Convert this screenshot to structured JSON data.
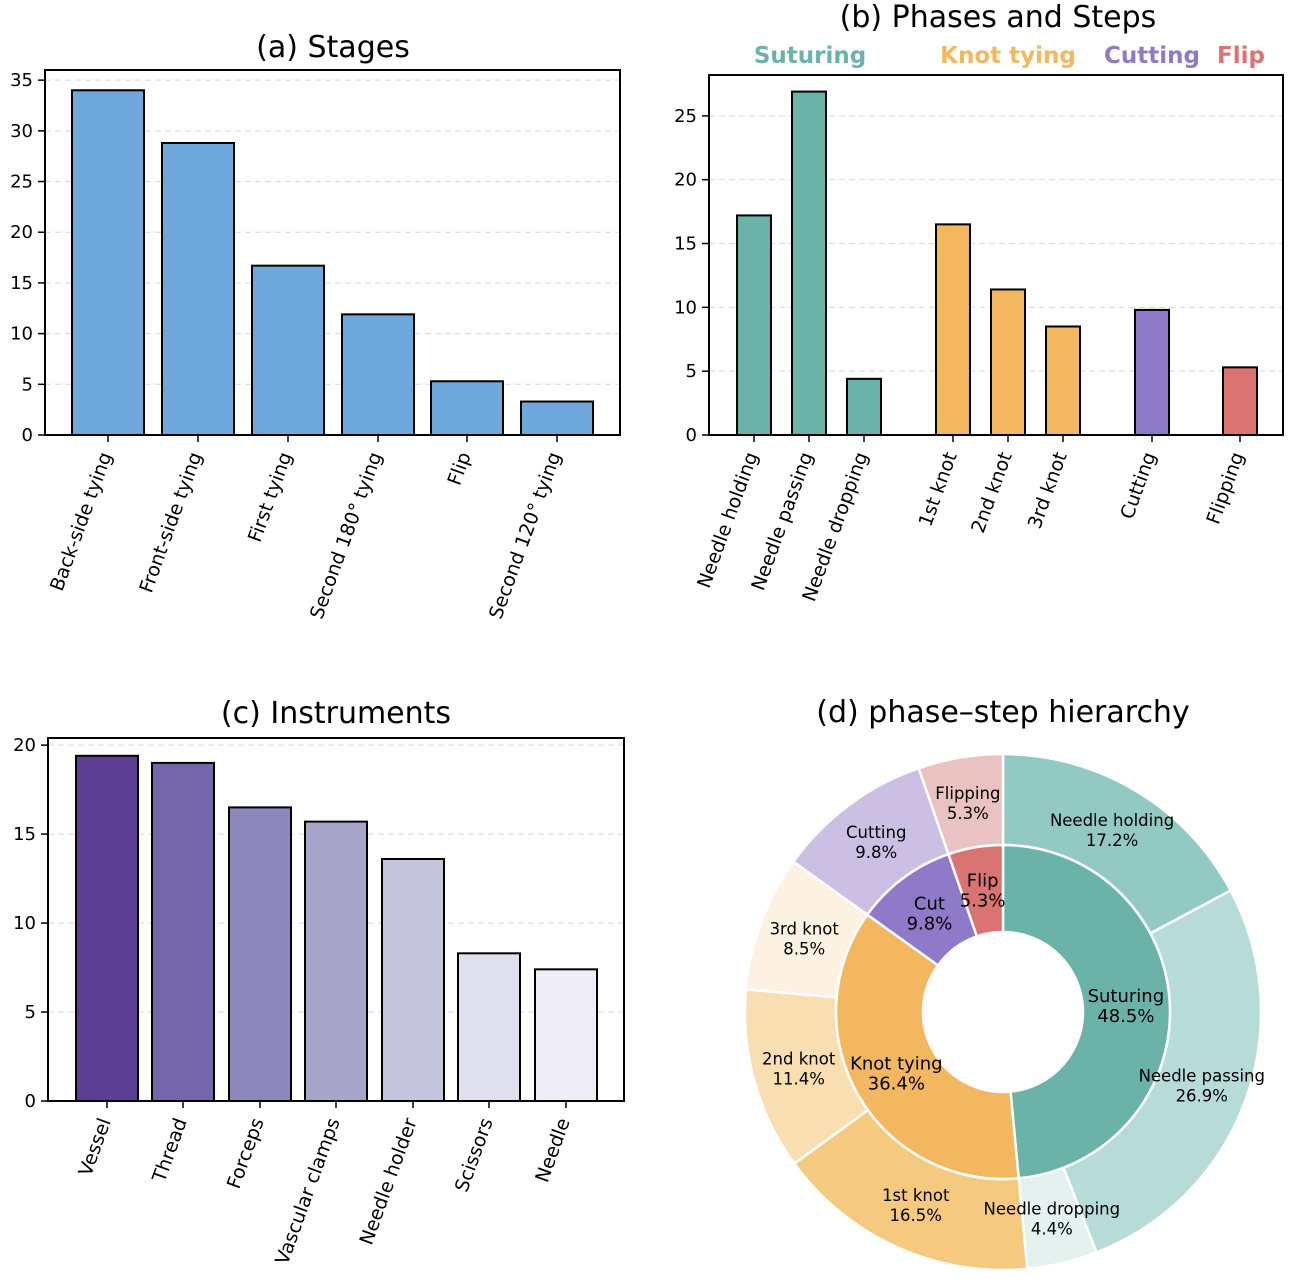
{
  "chart_data": [
    {
      "type": "bar",
      "title": "(a) Stages",
      "categories": [
        "Back-side tying",
        "Front-side tying",
        "First tying",
        "Second 180° tying",
        "Flip",
        "Second 120° tying"
      ],
      "values": [
        34.0,
        28.8,
        16.7,
        11.9,
        5.3,
        3.3
      ],
      "ylim": [
        0,
        36
      ],
      "yticks": [
        0,
        5,
        10,
        15,
        20,
        25,
        30,
        35
      ],
      "grid": true,
      "color": "#6fa8dc"
    },
    {
      "type": "bar",
      "title": "(b) Phases and Steps",
      "phases": [
        {
          "name": "Suturing",
          "color": "#6bb3a9"
        },
        {
          "name": "Knot tying",
          "color": "#f2b75f"
        },
        {
          "name": "Cutting",
          "color": "#8f79c9"
        },
        {
          "name": "Flip",
          "color": "#d97473"
        }
      ],
      "categories": [
        "Needle holding",
        "Needle passing",
        "Needle dropping",
        "1st knot",
        "2nd knot",
        "3rd knot",
        "Cutting",
        "Flipping"
      ],
      "category_phase": [
        "Suturing",
        "Suturing",
        "Suturing",
        "Knot tying",
        "Knot tying",
        "Knot tying",
        "Cutting",
        "Flip"
      ],
      "values": [
        17.2,
        26.9,
        4.4,
        16.5,
        11.4,
        8.5,
        9.8,
        5.3
      ],
      "ylim": [
        0,
        28.2
      ],
      "yticks": [
        0,
        5,
        10,
        15,
        20,
        25
      ],
      "grid": true
    },
    {
      "type": "bar",
      "title": "(c) Instruments",
      "categories": [
        "Vessel",
        "Thread",
        "Forceps",
        "Vascular clamps",
        "Needle holder",
        "Scissors",
        "Needle"
      ],
      "values": [
        19.4,
        19.0,
        16.5,
        15.7,
        13.6,
        8.3,
        7.4
      ],
      "colors": [
        "#5c3f93",
        "#7566ab",
        "#8c88bb",
        "#a8a5cb",
        "#c5c4dd",
        "#e0dfed",
        "#efedf5"
      ],
      "ylim": [
        0,
        20.4
      ],
      "yticks": [
        0,
        5,
        10,
        15,
        20
      ],
      "grid": true
    },
    {
      "type": "pie",
      "title": "(d) phase–step hierarchy",
      "inner": [
        {
          "label": "Suturing",
          "pct": "48.5%",
          "value": 48.5,
          "color": "#6bb3a9"
        },
        {
          "label": "Knot tying",
          "pct": "36.4%",
          "value": 36.4,
          "color": "#f2b75f"
        },
        {
          "label": "Cut",
          "pct": "9.8%",
          "value": 9.8,
          "color": "#8f79c9"
        },
        {
          "label": "Flip",
          "pct": "5.3%",
          "value": 5.3,
          "color": "#d97473"
        }
      ],
      "outer": [
        {
          "label": "Needle holding",
          "pct": "17.2%",
          "value": 17.2,
          "color": "#92c9c2"
        },
        {
          "label": "Needle passing",
          "pct": "26.9%",
          "value": 26.9,
          "color": "#b7dcd7"
        },
        {
          "label": "Needle dropping",
          "pct": "4.4%",
          "value": 4.4,
          "color": "#e4f1ef"
        },
        {
          "label": "1st knot",
          "pct": "16.5%",
          "value": 16.5,
          "color": "#f5c97f"
        },
        {
          "label": "2nd knot",
          "pct": "11.4%",
          "value": 11.4,
          "color": "#f9deb1"
        },
        {
          "label": "3rd knot",
          "pct": "8.5%",
          "value": 8.5,
          "color": "#fdf2e2"
        },
        {
          "label": "Cutting",
          "pct": "9.8%",
          "value": 9.8,
          "color": "#cbbfe4"
        },
        {
          "label": "Flipping",
          "pct": "5.3%",
          "value": 5.3,
          "color": "#ebc2c2"
        }
      ]
    }
  ]
}
